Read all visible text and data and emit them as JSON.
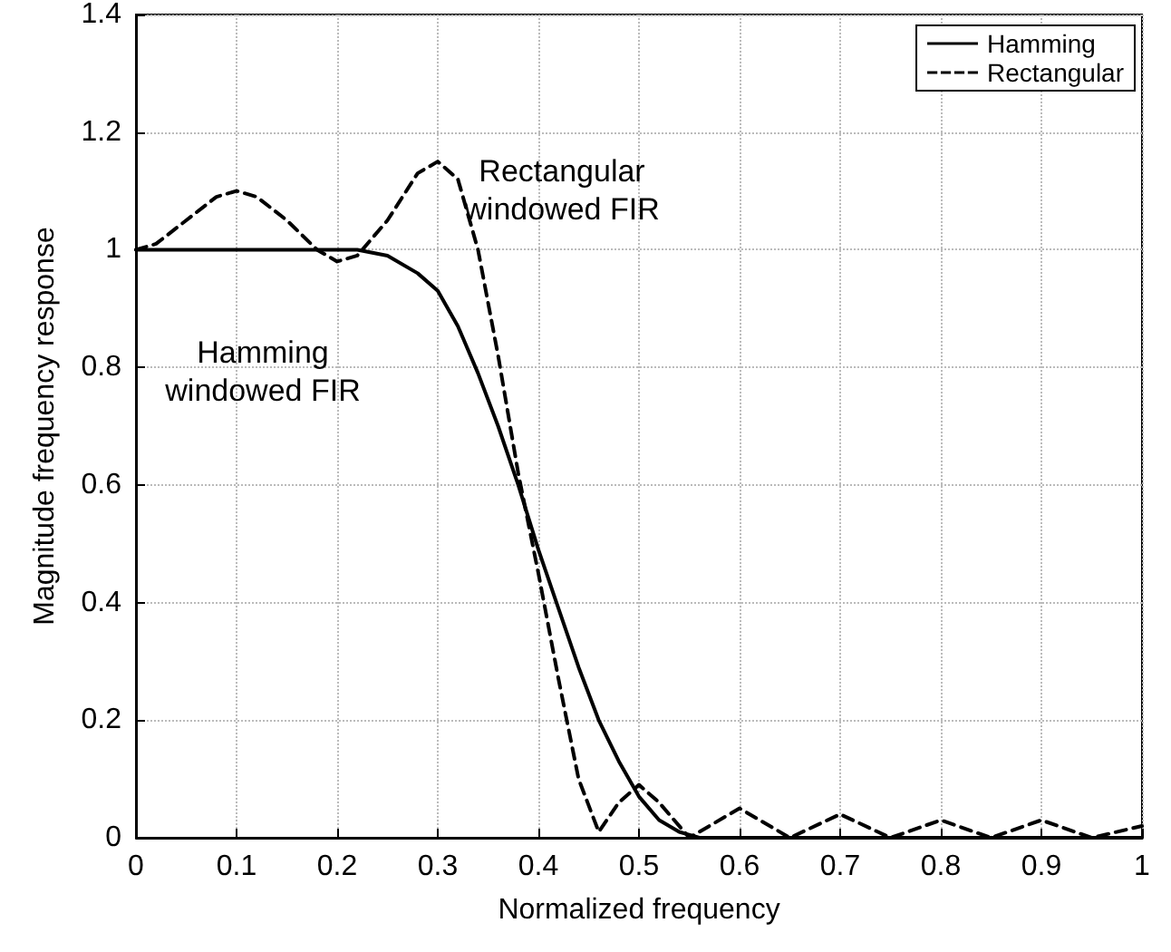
{
  "chart_data": {
    "type": "line",
    "xlabel": "Normalized frequency",
    "ylabel": "Magnitude frequency response",
    "xlim": [
      0,
      1
    ],
    "xticks": [
      0,
      0.1,
      0.2,
      0.3,
      0.4,
      0.5,
      0.6,
      0.7,
      0.8,
      0.9,
      1
    ],
    "ylim": [
      0,
      1.4
    ],
    "yticks": [
      0,
      0.2,
      0.4,
      0.6,
      0.8,
      1,
      1.2,
      1.4
    ],
    "grid": true,
    "legend": "top right",
    "marker": "none",
    "annotations": [
      "Rectangular\nwindowed FIR",
      "Hamming\nwindowed FIR"
    ],
    "series": [
      {
        "name": "Hamming",
        "color": "#000000",
        "line_style": "solid",
        "x": [
          0,
          0.1,
          0.2,
          0.22,
          0.25,
          0.28,
          0.3,
          0.32,
          0.34,
          0.36,
          0.38,
          0.4,
          0.42,
          0.44,
          0.46,
          0.48,
          0.5,
          0.52,
          0.54,
          0.56,
          1
        ],
        "values": [
          1,
          1,
          1,
          1,
          0.99,
          0.96,
          0.93,
          0.87,
          0.79,
          0.7,
          0.6,
          0.49,
          0.39,
          0.29,
          0.2,
          0.13,
          0.07,
          0.03,
          0.01,
          0,
          0
        ]
      },
      {
        "name": "Rectangular",
        "color": "#000000",
        "line_style": "dashed",
        "x": [
          0,
          0.02,
          0.05,
          0.08,
          0.1,
          0.12,
          0.15,
          0.18,
          0.2,
          0.22,
          0.25,
          0.28,
          0.3,
          0.32,
          0.34,
          0.36,
          0.38,
          0.4,
          0.42,
          0.44,
          0.46,
          0.48,
          0.5,
          0.52,
          0.55,
          0.6,
          0.65,
          0.7,
          0.75,
          0.8,
          0.85,
          0.9,
          0.95,
          1
        ],
        "values": [
          1,
          1.01,
          1.05,
          1.09,
          1.1,
          1.09,
          1.05,
          1,
          0.98,
          0.99,
          1.05,
          1.13,
          1.15,
          1.12,
          1,
          0.82,
          0.62,
          0.45,
          0.27,
          0.1,
          0.01,
          0.06,
          0.09,
          0.06,
          0,
          0.05,
          0,
          0.04,
          0,
          0.03,
          0,
          0.03,
          0,
          0.02
        ]
      }
    ]
  }
}
